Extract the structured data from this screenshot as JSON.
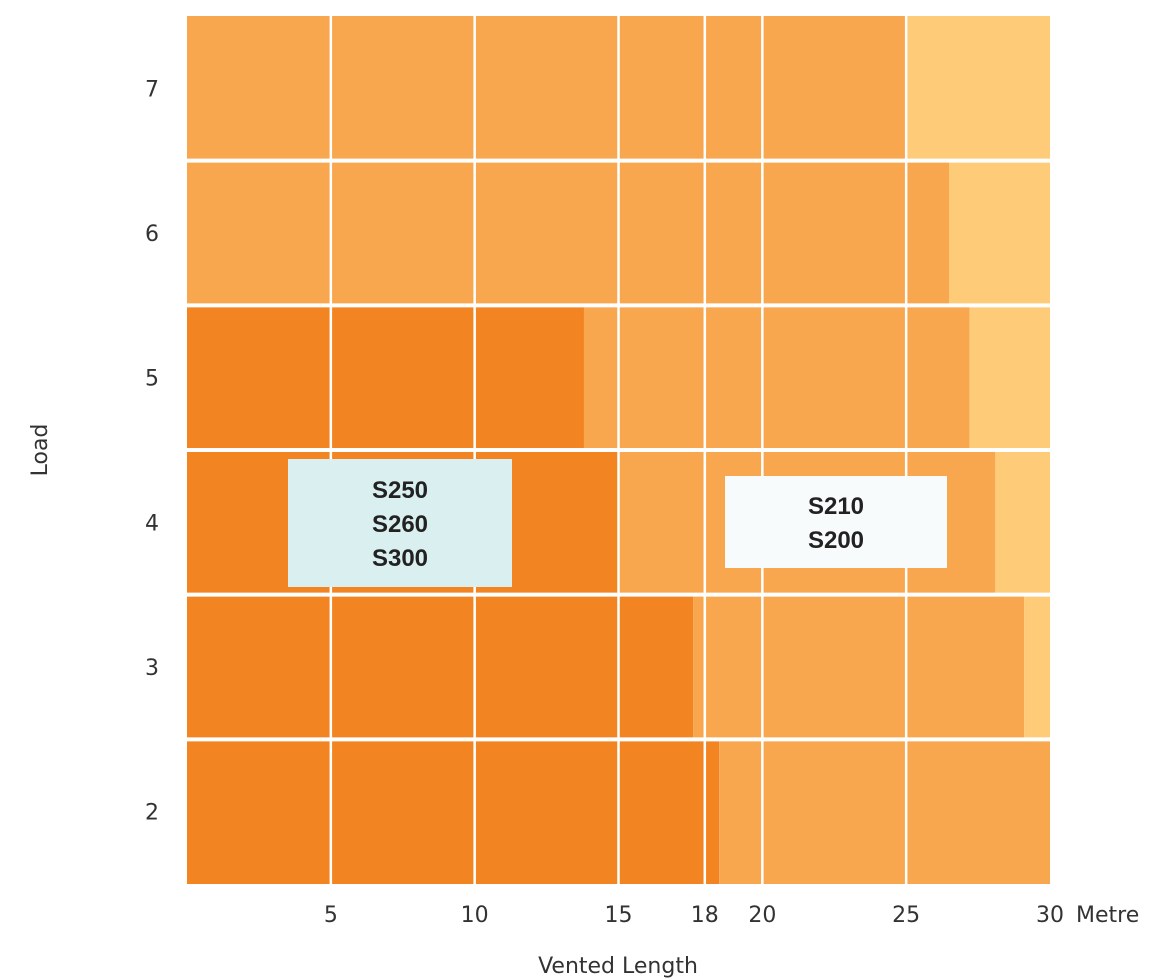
{
  "chart_data": {
    "type": "bar",
    "orientation": "horizontal",
    "stacked": true,
    "title": "",
    "xlabel": "Vented Length",
    "ylabel": "Load",
    "x_unit": "Metre",
    "xlim": [
      0,
      30
    ],
    "x_ticks": [
      5,
      10,
      15,
      18,
      20,
      25,
      30
    ],
    "grid": true,
    "categories": [
      "7",
      "6",
      "5",
      "4",
      "3",
      "2"
    ],
    "series": [
      {
        "color": "#f28522",
        "values": [
          0,
          0,
          13.8,
          15,
          17.6,
          18.5
        ]
      },
      {
        "color": "#f9a74e",
        "values": [
          25,
          26.5,
          13.4,
          13.1,
          11.5,
          11.5
        ]
      },
      {
        "color": "#fecb78",
        "values": [
          5,
          3.5,
          2.8,
          1.9,
          0.9,
          0
        ]
      }
    ],
    "annotations": [
      {
        "lines": [
          "S250",
          "S260",
          "S300"
        ],
        "background": "#daeff0"
      },
      {
        "lines": [
          "S210",
          "S200"
        ],
        "background": "#f7fbfc"
      }
    ]
  }
}
